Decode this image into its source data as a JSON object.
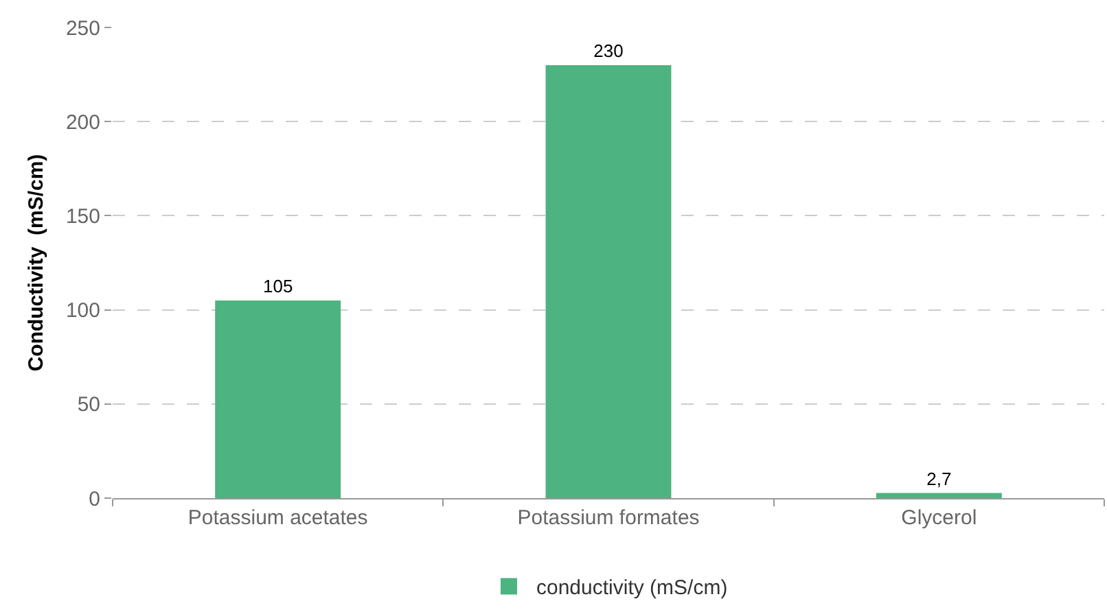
{
  "chart_data": {
    "type": "bar",
    "ylabel": "Conductivity  (mS/cm)",
    "categories": [
      "Potassium acetates",
      "Potassium formates",
      "Glycerol"
    ],
    "series": [
      {
        "name": "conductivity (mS/cm)",
        "color": "#4db380",
        "values": [
          105,
          230,
          2.7
        ],
        "value_labels": [
          "105",
          "230",
          "2,7"
        ]
      }
    ],
    "ylim": [
      0,
      250
    ],
    "yticks": [
      0,
      50,
      100,
      150,
      200,
      250
    ],
    "grid": "y",
    "legend": "bottom"
  }
}
